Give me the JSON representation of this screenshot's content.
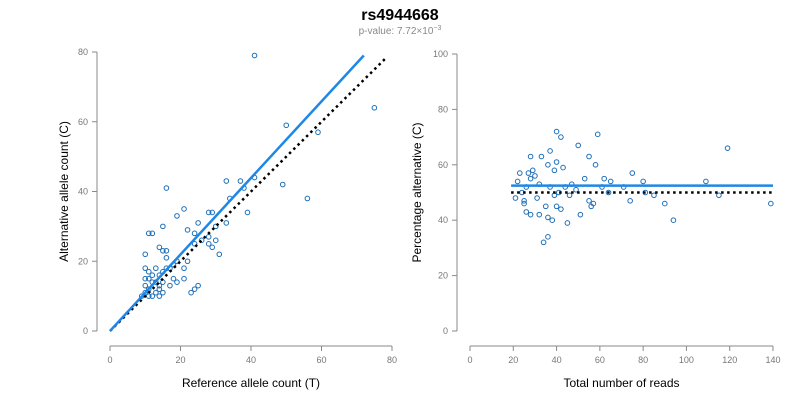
{
  "title": "rs4944668",
  "subtitle": {
    "prefix": "p-value: 7.72×10",
    "exponent": "−3"
  },
  "colors": {
    "point": "#1f6fb8",
    "fit_line": "#1f87e5",
    "reference_line": "#000000",
    "axis": "#8a8a8a"
  },
  "chart_data": [
    {
      "type": "scatter",
      "xlabel": "Reference allele count (T)",
      "ylabel": "Alternative allele count (C)",
      "xlim": [
        0,
        80
      ],
      "ylim": [
        0,
        80
      ],
      "xticks": [
        0,
        20,
        40,
        60,
        80
      ],
      "yticks": [
        0,
        20,
        40,
        60,
        80
      ],
      "grid": false,
      "points": [
        [
          41,
          79
        ],
        [
          75,
          64
        ],
        [
          50,
          59
        ],
        [
          59,
          57
        ],
        [
          56,
          38
        ],
        [
          49,
          42
        ],
        [
          41,
          44
        ],
        [
          33,
          43
        ],
        [
          37,
          43
        ],
        [
          38,
          41
        ],
        [
          39,
          34
        ],
        [
          34,
          38
        ],
        [
          29,
          34
        ],
        [
          28,
          34
        ],
        [
          16,
          41
        ],
        [
          21,
          35
        ],
        [
          19,
          33
        ],
        [
          15,
          30
        ],
        [
          25,
          31
        ],
        [
          24,
          28
        ],
        [
          22,
          29
        ],
        [
          11,
          28
        ],
        [
          12,
          28
        ],
        [
          30,
          30
        ],
        [
          29,
          24
        ],
        [
          24,
          25
        ],
        [
          26,
          26
        ],
        [
          33,
          31
        ],
        [
          30,
          26
        ],
        [
          28,
          25
        ],
        [
          28,
          27
        ],
        [
          31,
          22
        ],
        [
          14,
          24
        ],
        [
          16,
          23
        ],
        [
          15,
          23
        ],
        [
          10,
          22
        ],
        [
          16,
          21
        ],
        [
          19,
          20
        ],
        [
          22,
          20
        ],
        [
          21,
          18
        ],
        [
          18,
          19
        ],
        [
          16,
          18
        ],
        [
          17,
          18
        ],
        [
          13,
          18
        ],
        [
          10,
          18
        ],
        [
          11,
          17
        ],
        [
          15,
          17
        ],
        [
          14,
          16
        ],
        [
          12,
          16
        ],
        [
          10,
          15
        ],
        [
          11,
          15
        ],
        [
          13,
          14
        ],
        [
          15,
          14
        ],
        [
          18,
          15
        ],
        [
          12,
          14
        ],
        [
          14,
          13
        ],
        [
          10,
          13
        ],
        [
          11,
          12
        ],
        [
          14,
          12
        ],
        [
          10,
          11
        ],
        [
          13,
          11
        ],
        [
          15,
          11
        ],
        [
          9,
          10
        ],
        [
          11,
          10
        ],
        [
          14,
          10
        ],
        [
          12,
          10
        ],
        [
          17,
          13
        ],
        [
          19,
          14
        ],
        [
          25,
          13
        ],
        [
          23,
          11
        ],
        [
          24,
          12
        ],
        [
          21,
          15
        ]
      ],
      "fit_line": [
        [
          0,
          0
        ],
        [
          72,
          79
        ]
      ],
      "reference_line": [
        [
          0,
          0
        ],
        [
          78,
          78
        ]
      ]
    },
    {
      "type": "scatter",
      "xlabel": "Total number of reads",
      "ylabel": "Percentage alternative (C)",
      "xlim": [
        0,
        140
      ],
      "ylim": [
        0,
        100
      ],
      "xticks": [
        0,
        20,
        40,
        60,
        80,
        100,
        120,
        140
      ],
      "yticks": [
        0,
        20,
        40,
        60,
        80,
        100
      ],
      "grid": false,
      "points": [
        [
          40,
          72
        ],
        [
          42,
          70
        ],
        [
          59,
          71
        ],
        [
          50,
          67
        ],
        [
          37,
          65
        ],
        [
          28,
          63
        ],
        [
          33,
          63
        ],
        [
          40,
          61
        ],
        [
          36,
          60
        ],
        [
          43,
          59
        ],
        [
          29,
          58
        ],
        [
          39,
          58
        ],
        [
          55,
          63
        ],
        [
          65,
          54
        ],
        [
          75,
          57
        ],
        [
          28,
          55
        ],
        [
          30,
          56
        ],
        [
          32,
          53
        ],
        [
          27,
          57
        ],
        [
          26,
          52
        ],
        [
          22,
          54
        ],
        [
          23,
          57
        ],
        [
          25,
          47
        ],
        [
          24,
          50
        ],
        [
          26,
          43
        ],
        [
          25,
          46
        ],
        [
          28,
          42
        ],
        [
          31,
          48
        ],
        [
          32,
          42
        ],
        [
          36,
          41
        ],
        [
          38,
          40
        ],
        [
          40,
          45
        ],
        [
          42,
          44
        ],
        [
          44,
          52
        ],
        [
          47,
          53
        ],
        [
          49,
          51
        ],
        [
          41,
          50
        ],
        [
          39,
          49
        ],
        [
          37,
          52
        ],
        [
          55,
          47
        ],
        [
          57,
          46
        ],
        [
          56,
          45
        ],
        [
          61,
          52
        ],
        [
          64,
          50
        ],
        [
          71,
          52
        ],
        [
          74,
          47
        ],
        [
          80,
          54
        ],
        [
          81,
          50
        ],
        [
          85,
          49
        ],
        [
          90,
          46
        ],
        [
          94,
          40
        ],
        [
          109,
          54
        ],
        [
          115,
          49
        ],
        [
          119,
          66
        ],
        [
          139,
          46
        ],
        [
          34,
          32
        ],
        [
          36,
          34
        ],
        [
          46,
          49
        ],
        [
          51,
          42
        ],
        [
          45,
          39
        ],
        [
          21,
          48
        ],
        [
          53,
          55
        ],
        [
          62,
          55
        ],
        [
          58,
          60
        ],
        [
          35,
          45
        ]
      ],
      "fit_line": [
        [
          19,
          52.5
        ],
        [
          140,
          52.5
        ]
      ],
      "reference_line": [
        [
          19,
          50
        ],
        [
          140,
          50
        ]
      ]
    }
  ]
}
